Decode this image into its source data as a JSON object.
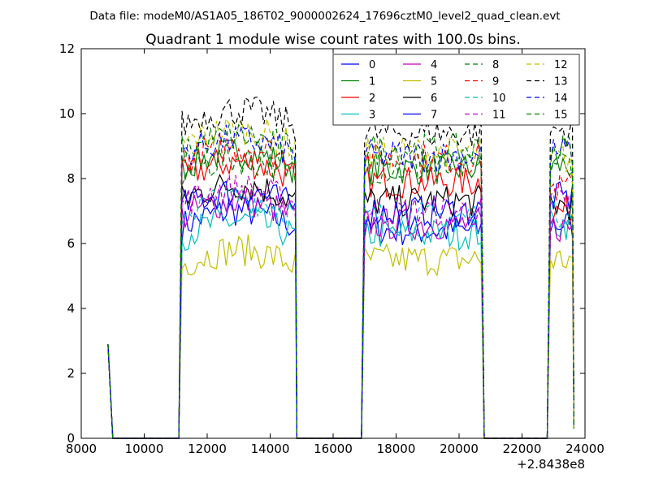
{
  "chart_data": {
    "type": "line",
    "suptitle": "Data file: modeM0/AS1A05_186T02_9000002624_17696cztM0_level2_quad_clean.evt",
    "title": "Quadrant 1 module wise count rates with 100.0s bins.",
    "xlabel": "",
    "ylabel": "",
    "x_offset_label": "+2.8438e8",
    "xlim": [
      8000,
      24000
    ],
    "ylim": [
      0,
      12
    ],
    "xticks": [
      8000,
      10000,
      12000,
      14000,
      16000,
      18000,
      20000,
      22000,
      24000
    ],
    "xtick_labels": [
      "8000",
      "10000",
      "12000",
      "14000",
      "16000",
      "18000",
      "20000",
      "22000",
      "24000"
    ],
    "yticks": [
      0,
      2,
      4,
      6,
      8,
      10,
      12
    ],
    "ytick_labels": [
      "0",
      "2",
      "4",
      "6",
      "8",
      "10",
      "12"
    ],
    "grid": false,
    "legend_position": "top-right",
    "bin_seconds": 100,
    "time_axis": {
      "spike_start": 8850,
      "spike_end": 9000,
      "on_intervals": [
        [
          11100,
          14850
        ],
        [
          16900,
          20800
        ],
        [
          22800,
          23650
        ]
      ],
      "spike_x": 8850,
      "end_value": 0.3
    },
    "series": [
      {
        "name": "0",
        "color": "#0000ff",
        "dash": "solid",
        "segment_levels": [
          6.5,
          6.4,
          6.6
        ],
        "spike": 2.9
      },
      {
        "name": "1",
        "color": "#008000",
        "dash": "solid",
        "segment_levels": [
          8.3,
          8.3,
          8.4
        ],
        "spike": 2.9
      },
      {
        "name": "2",
        "color": "#ff0000",
        "dash": "solid",
        "segment_levels": [
          8.0,
          7.9,
          7.0
        ],
        "spike": 2.9
      },
      {
        "name": "3",
        "color": "#00bfbf",
        "dash": "solid",
        "segment_levels": [
          6.2,
          6.3,
          6.6
        ],
        "spike": 2.9
      },
      {
        "name": "4",
        "color": "#bf00bf",
        "dash": "solid",
        "segment_levels": [
          6.8,
          6.6,
          6.5
        ],
        "spike": 2.9
      },
      {
        "name": "5",
        "color": "#bfbf00",
        "dash": "solid",
        "segment_levels": [
          5.3,
          5.5,
          5.5
        ],
        "spike": 2.9
      },
      {
        "name": "6",
        "color": "#000000",
        "dash": "solid",
        "segment_levels": [
          7.3,
          7.3,
          7.2
        ],
        "spike": 2.9
      },
      {
        "name": "7",
        "color": "#0000ff",
        "dash": "solid",
        "segment_levels": [
          7.1,
          7.0,
          7.4
        ],
        "spike": 2.9
      },
      {
        "name": "8",
        "color": "#008000",
        "dash": "dashed",
        "segment_levels": [
          8.1,
          8.3,
          8.5
        ],
        "spike": 2.9
      },
      {
        "name": "9",
        "color": "#ff0000",
        "dash": "dashed",
        "segment_levels": [
          8.5,
          8.6,
          7.7
        ],
        "spike": 2.9
      },
      {
        "name": "10",
        "color": "#00bfbf",
        "dash": "dashed",
        "segment_levels": [
          6.9,
          6.8,
          7.0
        ],
        "spike": 2.9
      },
      {
        "name": "11",
        "color": "#bf00bf",
        "dash": "dashed",
        "segment_levels": [
          7.2,
          7.0,
          7.3
        ],
        "spike": 2.9
      },
      {
        "name": "12",
        "color": "#bfbf00",
        "dash": "dashed",
        "segment_levels": [
          9.0,
          8.8,
          8.6
        ],
        "spike": 2.9
      },
      {
        "name": "13",
        "color": "#000000",
        "dash": "dashed",
        "segment_levels": [
          9.6,
          9.4,
          9.5
        ],
        "spike": 2.9
      },
      {
        "name": "14",
        "color": "#0000ff",
        "dash": "dashed",
        "segment_levels": [
          8.7,
          8.7,
          8.8
        ],
        "spike": 2.9
      },
      {
        "name": "15",
        "color": "#008000",
        "dash": "dashed",
        "segment_levels": [
          8.8,
          8.9,
          8.9
        ],
        "spike": 2.9
      }
    ]
  }
}
